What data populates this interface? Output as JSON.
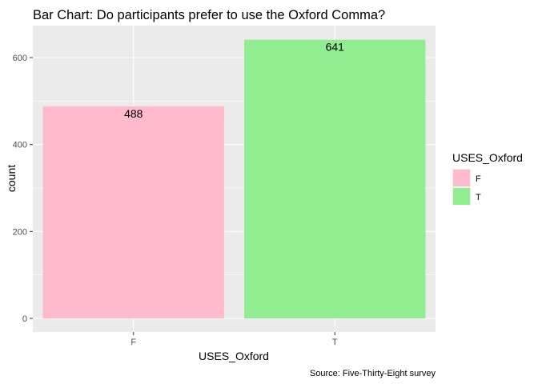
{
  "chart_data": {
    "type": "bar",
    "title": "Bar Chart: Do participants prefer to use the Oxford Comma?",
    "xlabel": "USES_Oxford",
    "ylabel": "count",
    "caption": "Source: Five-Thirty-Eight survey",
    "categories": [
      "F",
      "T"
    ],
    "values": [
      488,
      641
    ],
    "data_labels": [
      "488",
      "641"
    ],
    "colors": [
      "#FFBBCC",
      "#90EE90"
    ],
    "ylim": [
      0,
      670
    ],
    "yticks": [
      0,
      200,
      400,
      600
    ],
    "ytick_labels": [
      "0",
      "200",
      "400",
      "600"
    ],
    "grid": true,
    "panel_background": "#EBEBEB",
    "legend": {
      "title": "USES_Oxford",
      "position": "right",
      "entries": [
        "F",
        "T"
      ]
    }
  }
}
